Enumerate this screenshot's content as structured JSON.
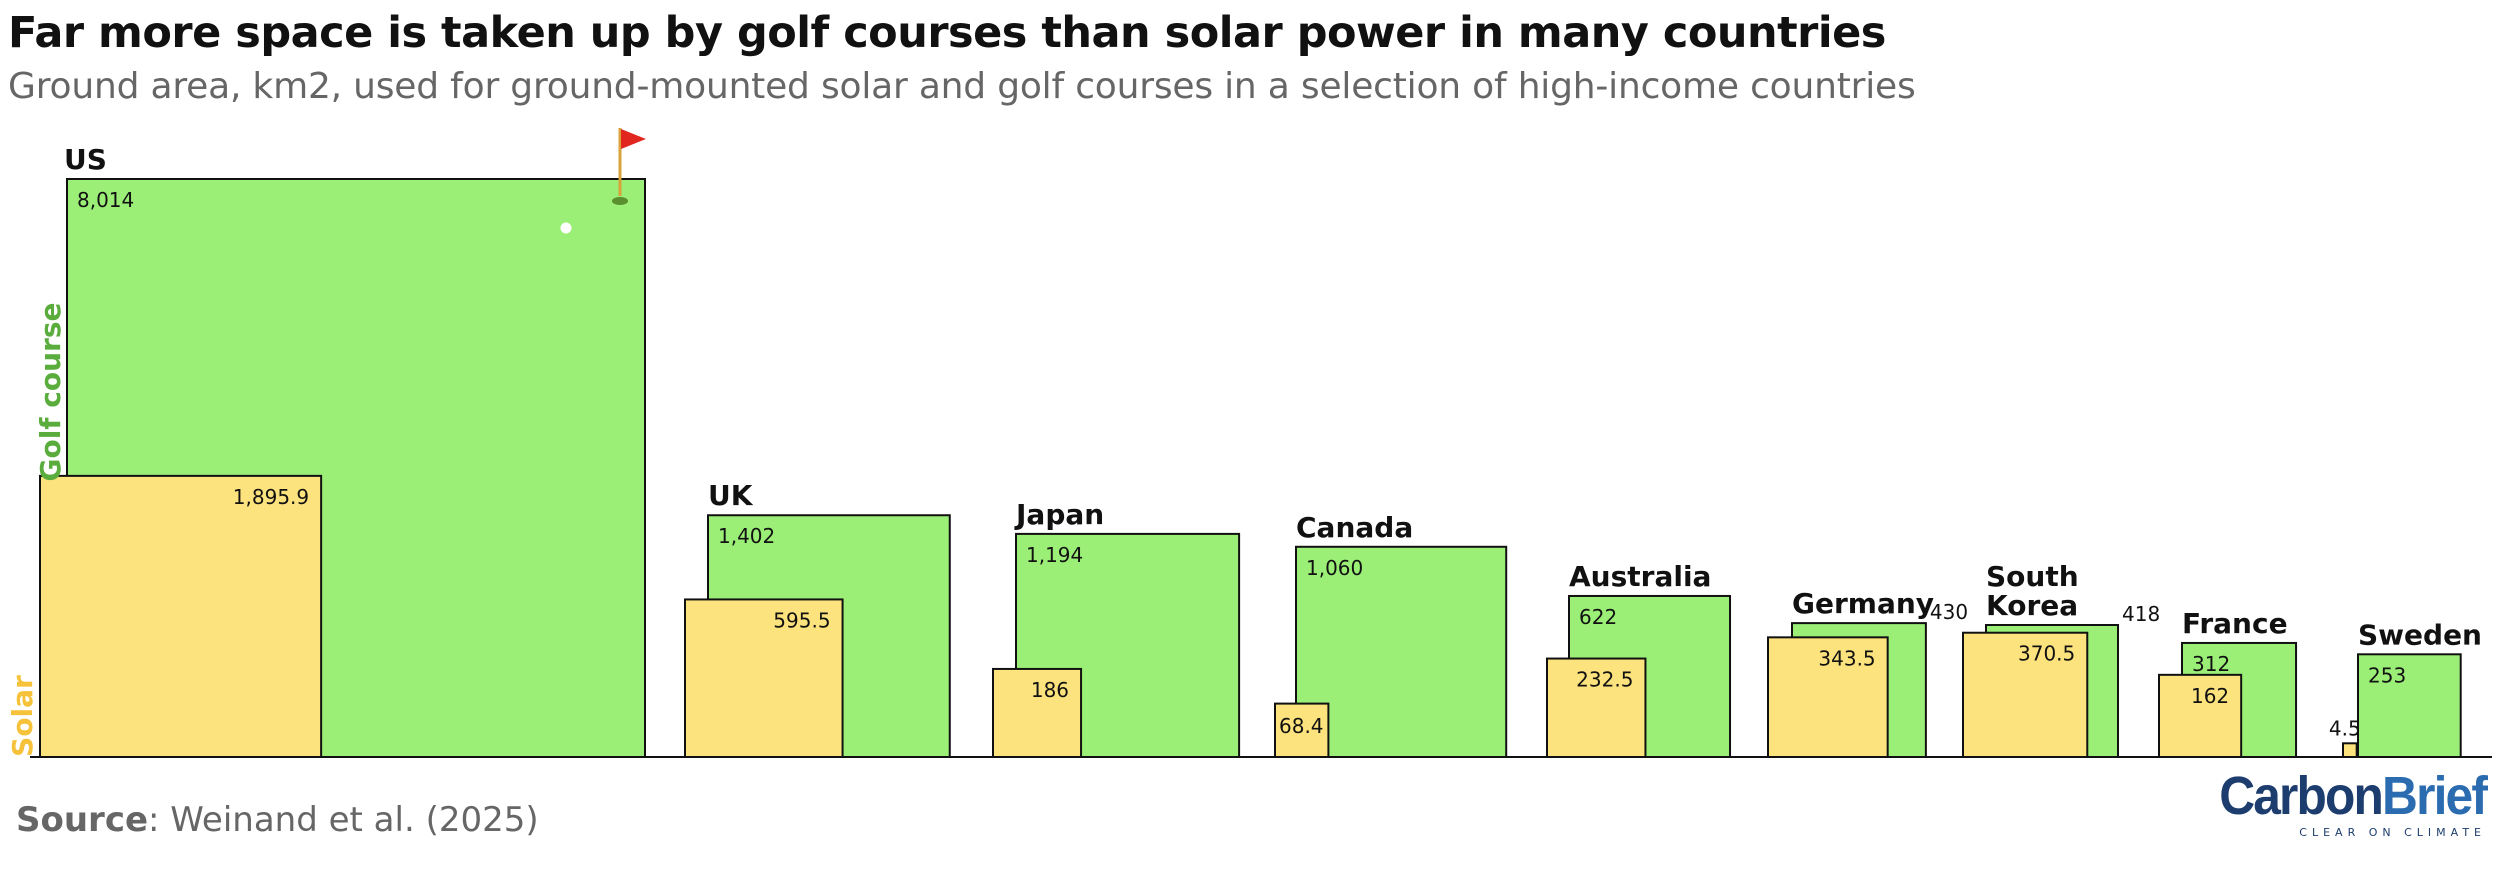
{
  "title": "Far more space is taken up by golf courses than solar power in many countries",
  "subtitle": "Ground area, km2, used for ground-mounted solar and golf courses in a selection of high-income countries",
  "source_label": "Source",
  "source_text": ": Weinand et al. (2025)",
  "logo": {
    "part1": "Carbon",
    "part2": "Brief",
    "tagline": "CLEAR ON CLIMATE"
  },
  "colors": {
    "golf": "#9bef77",
    "solar": "#fde37d",
    "golf_label": "#5aad3c",
    "solar_label": "#f5c23a",
    "flag": "#e0261e"
  },
  "chart_data": {
    "type": "area-squares",
    "axis_labels": {
      "golf": "Golf course",
      "solar": "Solar"
    },
    "countries": [
      {
        "name": "US",
        "golf": 8014,
        "solar": 1895.9,
        "golf_label": "8,014",
        "solar_label": "1,895.9"
      },
      {
        "name": "UK",
        "golf": 1402,
        "solar": 595.5,
        "golf_label": "1,402",
        "solar_label": "595.5"
      },
      {
        "name": "Japan",
        "golf": 1194,
        "solar": 186,
        "golf_label": "1,194",
        "solar_label": "186"
      },
      {
        "name": "Canada",
        "golf": 1060,
        "solar": 68.4,
        "golf_label": "1,060",
        "solar_label": "68.4"
      },
      {
        "name": "Australia",
        "golf": 622,
        "solar": 232.5,
        "golf_label": "622",
        "solar_label": "232.5"
      },
      {
        "name": "Germany",
        "golf": 430,
        "solar": 343.5,
        "golf_label": "430",
        "solar_label": "343.5"
      },
      {
        "name": "South Korea",
        "golf": 418,
        "solar": 370.5,
        "golf_label": "418",
        "solar_label": "370.5"
      },
      {
        "name": "France",
        "golf": 312,
        "solar": 162,
        "golf_label": "312",
        "solar_label": "162"
      },
      {
        "name": "Sweden",
        "golf": 253,
        "solar": 4.5,
        "golf_label": "253",
        "solar_label": "4.5"
      }
    ]
  }
}
